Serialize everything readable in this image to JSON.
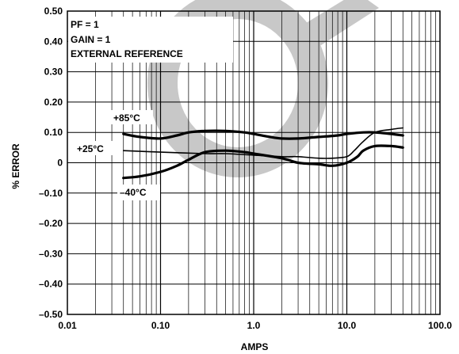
{
  "chart_data": {
    "type": "line",
    "title": "",
    "xlabel": "AMPS",
    "ylabel": "% ERROR",
    "xscale": "log",
    "xlim": [
      0.01,
      100.0
    ],
    "ylim": [
      -0.5,
      0.5
    ],
    "grid": true,
    "x_tick_labels": [
      "0.01",
      "0.10",
      "1.0",
      "10.0",
      "100.0"
    ],
    "y_tick_labels": [
      "0.50",
      "0.40",
      "0.30",
      "0.20",
      "0.10",
      "0",
      "–0.10",
      "–0.20",
      "–0.30",
      "–0.40",
      "–0.50"
    ],
    "notes": [
      "PF = 1",
      "GAIN = 1",
      "EXTERNAL REFERENCE"
    ],
    "watermark_color": "#c8c8c8",
    "series": [
      {
        "name": "+85°C",
        "x": [
          0.04,
          0.06,
          0.1,
          0.15,
          0.2,
          0.3,
          0.5,
          0.8,
          1.0,
          1.5,
          2.0,
          3.0,
          5.0,
          8.0,
          10.0,
          15.0,
          20.0,
          30.0,
          40.0
        ],
        "y": [
          0.095,
          0.085,
          0.08,
          0.09,
          0.1,
          0.105,
          0.105,
          0.1,
          0.095,
          0.085,
          0.08,
          0.08,
          0.085,
          0.09,
          0.095,
          0.1,
          0.1,
          0.095,
          0.09
        ]
      },
      {
        "name": "+25°C",
        "x": [
          0.04,
          0.1,
          0.3,
          0.5,
          1.0,
          2.0,
          3.0,
          5.0,
          7.0,
          10.0,
          12.0,
          15.0,
          20.0,
          30.0,
          40.0
        ],
        "y": [
          0.04,
          0.035,
          0.03,
          0.03,
          0.025,
          0.02,
          0.02,
          0.015,
          0.015,
          0.02,
          0.04,
          0.07,
          0.1,
          0.11,
          0.115
        ]
      },
      {
        "name": "–40°C",
        "x": [
          0.04,
          0.06,
          0.1,
          0.15,
          0.2,
          0.3,
          0.5,
          0.8,
          1.0,
          2.0,
          3.0,
          5.0,
          7.0,
          10.0,
          13.0,
          15.0,
          20.0,
          30.0,
          40.0
        ],
        "y": [
          -0.05,
          -0.045,
          -0.03,
          -0.01,
          0.01,
          0.035,
          0.04,
          0.035,
          0.03,
          0.015,
          0.0,
          -0.005,
          -0.01,
          0.0,
          0.02,
          0.04,
          0.055,
          0.055,
          0.05
        ]
      }
    ]
  }
}
